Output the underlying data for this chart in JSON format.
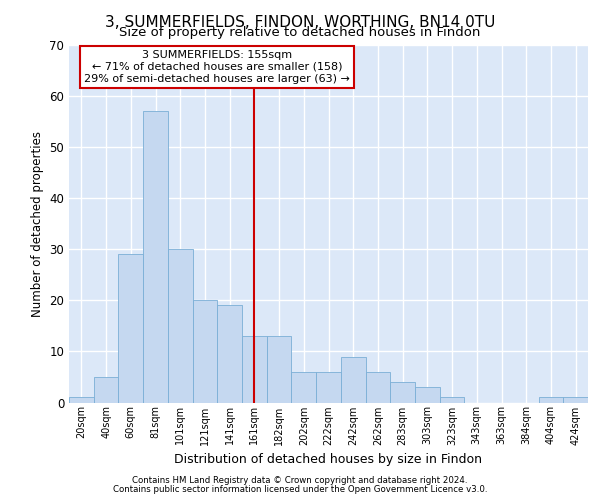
{
  "title1": "3, SUMMERFIELDS, FINDON, WORTHING, BN14 0TU",
  "title2": "Size of property relative to detached houses in Findon",
  "xlabel": "Distribution of detached houses by size in Findon",
  "ylabel": "Number of detached properties",
  "footer1": "Contains HM Land Registry data © Crown copyright and database right 2024.",
  "footer2": "Contains public sector information licensed under the Open Government Licence v3.0.",
  "annotation_line1": "3 SUMMERFIELDS: 155sqm",
  "annotation_line2": "← 71% of detached houses are smaller (158)",
  "annotation_line3": "29% of semi-detached houses are larger (63) →",
  "bar_categories": [
    "20sqm",
    "40sqm",
    "60sqm",
    "81sqm",
    "101sqm",
    "121sqm",
    "141sqm",
    "161sqm",
    "182sqm",
    "202sqm",
    "222sqm",
    "242sqm",
    "262sqm",
    "283sqm",
    "303sqm",
    "323sqm",
    "343sqm",
    "363sqm",
    "384sqm",
    "404sqm",
    "424sqm"
  ],
  "bar_values": [
    1,
    5,
    29,
    57,
    30,
    20,
    19,
    13,
    13,
    6,
    6,
    9,
    6,
    4,
    3,
    1,
    0,
    0,
    0,
    1,
    1
  ],
  "bar_color": "#c5d8f0",
  "bar_edge_color": "#7aaed6",
  "vline_x": 7,
  "vline_color": "#cc0000",
  "annotation_box_color": "#cc0000",
  "plot_background": "#dce8f8",
  "ylim": [
    0,
    70
  ],
  "yticks": [
    0,
    10,
    20,
    30,
    40,
    50,
    60,
    70
  ],
  "grid_color": "#ffffff",
  "title1_fontsize": 11,
  "title2_fontsize": 9.5
}
